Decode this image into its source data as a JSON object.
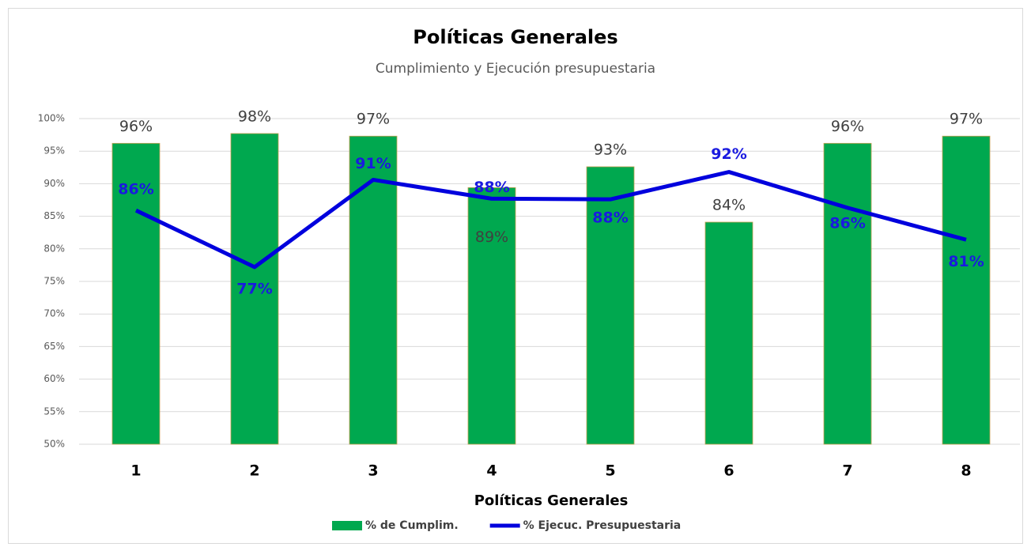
{
  "chart_data": {
    "type": "bar",
    "title": "Políticas Generales",
    "subtitle": "Cumplimiento y Ejecución presupuestaria",
    "x_label": "Políticas Generales",
    "categories": [
      "1",
      "2",
      "3",
      "4",
      "5",
      "6",
      "7",
      "8"
    ],
    "series": [
      {
        "name": "% de Cumplim.",
        "type": "bar",
        "color": "#00a84f",
        "values": [
          96.2,
          97.7,
          97.3,
          89.4,
          92.6,
          84.1,
          96.2,
          97.3
        ],
        "value_labels": [
          "96%",
          "98%",
          "97%",
          "89%",
          "93%",
          "84%",
          "96%",
          "97%"
        ]
      },
      {
        "name": "% Ejecuc. Presupuestaria",
        "type": "line",
        "color": "#0000dd",
        "values": [
          85.9,
          77.2,
          90.6,
          87.7,
          87.6,
          91.8,
          86.3,
          81.4
        ],
        "value_labels": [
          "86%",
          "77%",
          "91%",
          "88%",
          "88%",
          "92%",
          "86%",
          "81%"
        ]
      }
    ],
    "ylim": [
      50,
      100
    ],
    "yticks": [
      {
        "value": 50,
        "label": "50%"
      },
      {
        "value": 55,
        "label": "55%"
      },
      {
        "value": 60,
        "label": "60%"
      },
      {
        "value": 65,
        "label": "65%"
      },
      {
        "value": 70,
        "label": "70%"
      },
      {
        "value": 75,
        "label": "75%"
      },
      {
        "value": 80,
        "label": "80%"
      },
      {
        "value": 85,
        "label": "85%"
      },
      {
        "value": 90,
        "label": "90%"
      },
      {
        "value": 95,
        "label": "95%"
      },
      {
        "value": 100,
        "label": "100%"
      }
    ],
    "grid": true,
    "legend": "bottom"
  }
}
